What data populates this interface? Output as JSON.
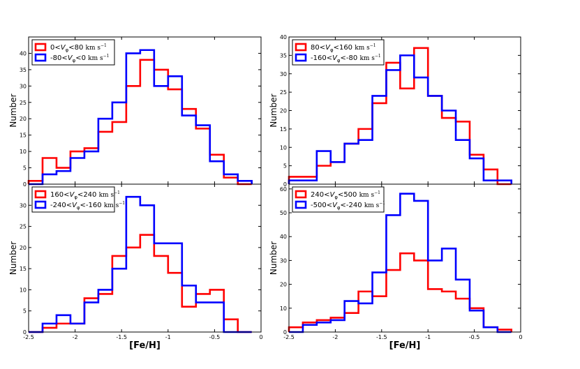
{
  "chart_data": [
    {
      "type": "histogram",
      "panel": "top-left",
      "xlim": [
        -2.5,
        0
      ],
      "ylim": [
        0,
        45
      ],
      "xticks": [
        "-2.5",
        "-2",
        "-1.5",
        "-1",
        "-0.5",
        "0"
      ],
      "yticks": [
        "0",
        "5",
        "10",
        "15",
        "20",
        "25",
        "30",
        "35",
        "40"
      ],
      "ylabel": "Number",
      "xlabel": "",
      "legend_loc": "top-left",
      "bin_edges": [
        -2.5,
        -2.35,
        -2.2,
        -2.05,
        -1.9,
        -1.75,
        -1.6,
        -1.45,
        -1.3,
        -1.15,
        -1.0,
        -0.85,
        -0.7,
        -0.55,
        -0.4,
        -0.25,
        -0.1
      ],
      "series": [
        {
          "name": "red",
          "color": "#ff0000",
          "legend": {
            "pre": "0<",
            "sub": "φ",
            "post": "<80"
          },
          "values": [
            1,
            8,
            5,
            10,
            11,
            16,
            19,
            30,
            38,
            35,
            29,
            23,
            17,
            9,
            2,
            0
          ]
        },
        {
          "name": "blue",
          "color": "#0000ff",
          "legend": {
            "pre": "-80<",
            "sub": "φ",
            "post": "<0"
          },
          "values": [
            0,
            3,
            4,
            8,
            10,
            20,
            25,
            40,
            41,
            30,
            33,
            21,
            18,
            7,
            3,
            1
          ]
        }
      ]
    },
    {
      "type": "histogram",
      "panel": "top-right",
      "xlim": [
        -2.5,
        0
      ],
      "ylim": [
        0,
        40
      ],
      "xticks": [
        "-2.5",
        "-2",
        "-1.5",
        "-1",
        "-0.5",
        "0"
      ],
      "yticks": [
        "0",
        "5",
        "10",
        "15",
        "20",
        "25",
        "30",
        "35",
        "40"
      ],
      "ylabel": "Number",
      "xlabel": "",
      "legend_loc": "top-left",
      "bin_edges": [
        -2.5,
        -2.35,
        -2.2,
        -2.05,
        -1.9,
        -1.75,
        -1.6,
        -1.45,
        -1.3,
        -1.15,
        -1.0,
        -0.85,
        -0.7,
        -0.55,
        -0.4,
        -0.25,
        -0.1
      ],
      "series": [
        {
          "name": "red",
          "color": "#ff0000",
          "legend": {
            "pre": "80<",
            "sub": "φ",
            "post": "<160"
          },
          "values": [
            2,
            2,
            5,
            6,
            11,
            15,
            22,
            33,
            26,
            37,
            24,
            18,
            17,
            8,
            4,
            0
          ]
        },
        {
          "name": "blue",
          "color": "#0000ff",
          "legend": {
            "pre": "-160<",
            "sub": "φ",
            "post": "<-80"
          },
          "values": [
            1,
            1,
            9,
            6,
            11,
            12,
            24,
            31,
            35,
            29,
            24,
            20,
            12,
            7,
            1,
            1
          ]
        }
      ]
    },
    {
      "type": "histogram",
      "panel": "bottom-left",
      "xlim": [
        -2.5,
        0
      ],
      "ylim": [
        0,
        35
      ],
      "xticks": [
        "-2.5",
        "-2",
        "-1.5",
        "-1",
        "-0.5",
        "0"
      ],
      "yticks": [
        "0",
        "5",
        "10",
        "15",
        "20",
        "25",
        "30"
      ],
      "ylabel": "Number",
      "xlabel": "[Fe/H]",
      "legend_loc": "top-left",
      "bin_edges": [
        -2.5,
        -2.35,
        -2.2,
        -2.05,
        -1.9,
        -1.75,
        -1.6,
        -1.45,
        -1.3,
        -1.15,
        -1.0,
        -0.85,
        -0.7,
        -0.55,
        -0.4,
        -0.25,
        -0.1
      ],
      "series": [
        {
          "name": "red",
          "color": "#ff0000",
          "legend": {
            "pre": "160<",
            "sub": "φ",
            "post": "<240"
          },
          "values": [
            0,
            1,
            2,
            2,
            8,
            9,
            18,
            20,
            23,
            18,
            14,
            6,
            9,
            10,
            3,
            0
          ]
        },
        {
          "name": "blue",
          "color": "#0000ff",
          "legend": {
            "pre": "-240<",
            "sub": "φ",
            "post": "<-160"
          },
          "values": [
            0,
            2,
            4,
            2,
            7,
            10,
            15,
            32,
            30,
            21,
            21,
            11,
            7,
            7,
            0,
            0
          ]
        }
      ]
    },
    {
      "type": "histogram",
      "panel": "bottom-right",
      "xlim": [
        -2.5,
        0
      ],
      "ylim": [
        0,
        62
      ],
      "xticks": [
        "-2.5",
        "-2",
        "-1.5",
        "-1",
        "-0.5",
        "0"
      ],
      "yticks": [
        "0",
        "10",
        "20",
        "30",
        "40",
        "50",
        "60"
      ],
      "ylabel": "Number",
      "xlabel": "[Fe/H]",
      "legend_loc": "top-left",
      "bin_edges": [
        -2.5,
        -2.35,
        -2.2,
        -2.05,
        -1.9,
        -1.75,
        -1.6,
        -1.45,
        -1.3,
        -1.15,
        -1.0,
        -0.85,
        -0.7,
        -0.55,
        -0.4,
        -0.25,
        -0.1
      ],
      "series": [
        {
          "name": "red",
          "color": "#ff0000",
          "legend": {
            "pre": "240<",
            "sub": "φ",
            "post": "<500"
          },
          "values": [
            2,
            4,
            5,
            6,
            8,
            17,
            15,
            26,
            33,
            30,
            18,
            17,
            14,
            10,
            2,
            1
          ]
        },
        {
          "name": "blue",
          "color": "#0000ff",
          "legend": {
            "pre": "-500<",
            "sub": "φ",
            "post": "<-240"
          },
          "values": [
            0,
            3,
            4,
            5,
            13,
            12,
            25,
            49,
            58,
            55,
            30,
            35,
            22,
            9,
            2,
            0
          ]
        }
      ]
    }
  ],
  "legend_symbol": "V",
  "legend_unit": "km s",
  "legend_unit_exp": "−1"
}
